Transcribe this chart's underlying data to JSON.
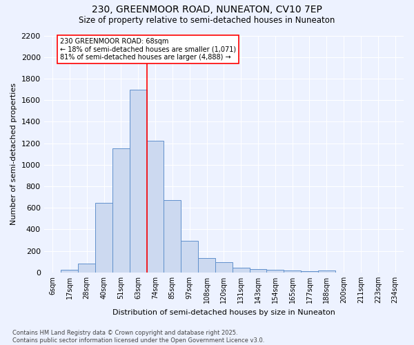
{
  "title1": "230, GREENMOOR ROAD, NUNEATON, CV10 7EP",
  "title2": "Size of property relative to semi-detached houses in Nuneaton",
  "xlabel": "Distribution of semi-detached houses by size in Nuneaton",
  "ylabel": "Number of semi-detached properties",
  "categories": [
    "6sqm",
    "17sqm",
    "28sqm",
    "40sqm",
    "51sqm",
    "63sqm",
    "74sqm",
    "85sqm",
    "97sqm",
    "108sqm",
    "120sqm",
    "131sqm",
    "143sqm",
    "154sqm",
    "165sqm",
    "177sqm",
    "188sqm",
    "200sqm",
    "211sqm",
    "223sqm",
    "234sqm"
  ],
  "values": [
    0,
    25,
    85,
    645,
    1150,
    1700,
    1225,
    670,
    295,
    135,
    95,
    45,
    30,
    25,
    20,
    15,
    20,
    0,
    0,
    0,
    0
  ],
  "bar_color": "#ccd9f0",
  "bar_edge_color": "#6090cc",
  "vline_x": 5.5,
  "vline_color": "red",
  "annotation_title": "230 GREENMOOR ROAD: 68sqm",
  "annotation_line1": "← 18% of semi-detached houses are smaller (1,071)",
  "annotation_line2": "81% of semi-detached houses are larger (4,888) →",
  "annotation_box_color": "white",
  "annotation_box_edge": "red",
  "ylim": [
    0,
    2200
  ],
  "yticks": [
    0,
    200,
    400,
    600,
    800,
    1000,
    1200,
    1400,
    1600,
    1800,
    2000,
    2200
  ],
  "footnote1": "Contains HM Land Registry data © Crown copyright and database right 2025.",
  "footnote2": "Contains public sector information licensed under the Open Government Licence v3.0.",
  "bg_color": "#edf2ff",
  "grid_color": "white"
}
